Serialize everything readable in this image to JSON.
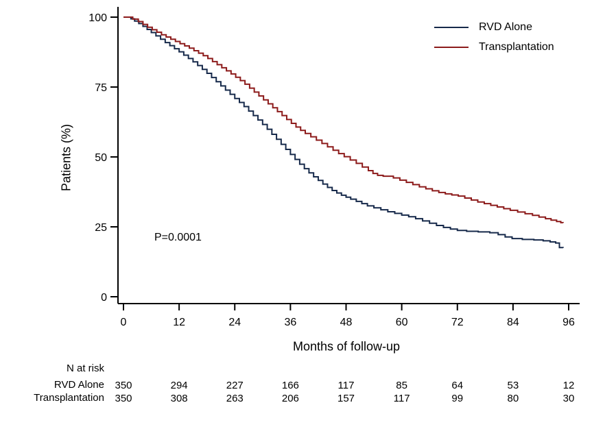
{
  "chart_data": {
    "type": "line",
    "subtype": "kaplan-meier-step",
    "xlabel": "Months of follow-up",
    "ylabel": "Patients (%)",
    "xlim": [
      0,
      96
    ],
    "ylim": [
      0,
      100
    ],
    "xticks": [
      0,
      12,
      24,
      36,
      48,
      60,
      72,
      84,
      96
    ],
    "yticks": [
      0,
      25,
      50,
      75,
      100
    ],
    "grid": false,
    "legend_position": "top-right",
    "annotation": "P=0.0001",
    "axis_color": "#000000",
    "series": [
      {
        "name": "RVD Alone",
        "color": "#16294a",
        "points": [
          [
            0,
            100
          ],
          [
            1.6,
            99.4
          ],
          [
            2.4,
            98.6
          ],
          [
            3.3,
            97.7
          ],
          [
            4.2,
            96.7
          ],
          [
            5.1,
            95.6
          ],
          [
            6,
            94.5
          ],
          [
            7,
            93.3
          ],
          [
            8,
            92.1
          ],
          [
            9,
            90.9
          ],
          [
            10,
            89.8
          ],
          [
            11,
            88.7
          ],
          [
            12,
            87.6
          ],
          [
            13,
            86.4
          ],
          [
            14,
            85.2
          ],
          [
            15,
            84
          ],
          [
            16,
            82.7
          ],
          [
            17,
            81.3
          ],
          [
            18,
            79.9
          ],
          [
            19,
            78.4
          ],
          [
            20,
            76.9
          ],
          [
            21,
            75.4
          ],
          [
            22,
            73.9
          ],
          [
            23,
            72.4
          ],
          [
            24,
            70.9
          ],
          [
            25,
            69.5
          ],
          [
            26,
            68
          ],
          [
            27,
            66.4
          ],
          [
            28,
            64.8
          ],
          [
            29,
            63.2
          ],
          [
            30,
            61.6
          ],
          [
            31,
            59.9
          ],
          [
            32,
            58.1
          ],
          [
            33,
            56.3
          ],
          [
            34,
            54.5
          ],
          [
            35,
            52.7
          ],
          [
            36,
            50.9
          ],
          [
            37,
            49.1
          ],
          [
            38,
            47.4
          ],
          [
            39,
            45.8
          ],
          [
            40,
            44.3
          ],
          [
            41,
            42.9
          ],
          [
            42,
            41.6
          ],
          [
            43,
            40.3
          ],
          [
            44,
            39.1
          ],
          [
            45,
            38
          ],
          [
            46,
            37.1
          ],
          [
            47,
            36.3
          ],
          [
            48,
            35.6
          ],
          [
            49,
            34.9
          ],
          [
            50.2,
            34.1
          ],
          [
            51.4,
            33.3
          ],
          [
            52.6,
            32.5
          ],
          [
            54,
            31.8
          ],
          [
            55.5,
            31.1
          ],
          [
            57,
            30.4
          ],
          [
            58.5,
            29.8
          ],
          [
            60,
            29.2
          ],
          [
            61.5,
            28.6
          ],
          [
            63,
            27.9
          ],
          [
            64.5,
            27.1
          ],
          [
            66,
            26.3
          ],
          [
            67.5,
            25.5
          ],
          [
            69,
            24.8
          ],
          [
            70.5,
            24.2
          ],
          [
            72,
            23.7
          ],
          [
            74,
            23.4
          ],
          [
            76.5,
            23.2
          ],
          [
            79,
            22.9
          ],
          [
            80.8,
            22.2
          ],
          [
            82.3,
            21.4
          ],
          [
            83.8,
            20.8
          ],
          [
            86,
            20.5
          ],
          [
            88.5,
            20.3
          ],
          [
            90.5,
            20
          ],
          [
            92,
            19.6
          ],
          [
            93.2,
            19.2
          ],
          [
            94,
            17.6
          ],
          [
            94.8,
            17.5
          ]
        ]
      },
      {
        "name": "Transplantation",
        "color": "#8c1a1a",
        "points": [
          [
            0,
            100
          ],
          [
            2,
            99.3
          ],
          [
            3.2,
            98.4
          ],
          [
            4.2,
            97.4
          ],
          [
            5.2,
            96.4
          ],
          [
            6.2,
            95.5
          ],
          [
            7.2,
            94.6
          ],
          [
            8.2,
            93.7
          ],
          [
            9.2,
            92.9
          ],
          [
            10.2,
            92.1
          ],
          [
            11.2,
            91.3
          ],
          [
            12.2,
            90.5
          ],
          [
            13.2,
            89.7
          ],
          [
            14.2,
            88.9
          ],
          [
            15.2,
            88
          ],
          [
            16.2,
            87.1
          ],
          [
            17.2,
            86.2
          ],
          [
            18.2,
            85.2
          ],
          [
            19.2,
            84.1
          ],
          [
            20.2,
            83
          ],
          [
            21.2,
            81.9
          ],
          [
            22.2,
            80.8
          ],
          [
            23.2,
            79.7
          ],
          [
            24.2,
            78.5
          ],
          [
            25.2,
            77.3
          ],
          [
            26.2,
            76
          ],
          [
            27.2,
            74.6
          ],
          [
            28.2,
            73.2
          ],
          [
            29.2,
            71.8
          ],
          [
            30.2,
            70.4
          ],
          [
            31.2,
            69
          ],
          [
            32.2,
            67.6
          ],
          [
            33.2,
            66.2
          ],
          [
            34.2,
            64.8
          ],
          [
            35.2,
            63.4
          ],
          [
            36.2,
            62
          ],
          [
            37.2,
            60.7
          ],
          [
            38.2,
            59.5
          ],
          [
            39.2,
            58.4
          ],
          [
            40.4,
            57.2
          ],
          [
            41.6,
            56
          ],
          [
            42.8,
            54.8
          ],
          [
            44,
            53.6
          ],
          [
            45.2,
            52.4
          ],
          [
            46.4,
            51.2
          ],
          [
            47.6,
            50.1
          ],
          [
            48.9,
            48.9
          ],
          [
            50.2,
            47.7
          ],
          [
            51.5,
            46.4
          ],
          [
            52.8,
            45.1
          ],
          [
            53.8,
            44.1
          ],
          [
            54.8,
            43.4
          ],
          [
            56,
            43.1
          ],
          [
            58.2,
            42.5
          ],
          [
            59.6,
            41.7
          ],
          [
            61,
            40.9
          ],
          [
            62.4,
            40.1
          ],
          [
            63.8,
            39.3
          ],
          [
            65.2,
            38.6
          ],
          [
            66.6,
            37.9
          ],
          [
            68,
            37.3
          ],
          [
            69.4,
            36.8
          ],
          [
            70.8,
            36.4
          ],
          [
            72.2,
            36
          ],
          [
            73.6,
            35.3
          ],
          [
            75,
            34.6
          ],
          [
            76.4,
            33.9
          ],
          [
            77.8,
            33.3
          ],
          [
            79.2,
            32.7
          ],
          [
            80.6,
            32.1
          ],
          [
            82,
            31.5
          ],
          [
            83.4,
            30.9
          ],
          [
            85,
            30.3
          ],
          [
            86.6,
            29.7
          ],
          [
            88.2,
            29.1
          ],
          [
            89.6,
            28.5
          ],
          [
            91,
            27.9
          ],
          [
            92.2,
            27.4
          ],
          [
            93.4,
            26.9
          ],
          [
            94.3,
            26.5
          ],
          [
            94.8,
            26.4
          ]
        ]
      }
    ],
    "risk_table": {
      "title": "N at risk",
      "months": [
        0,
        12,
        24,
        36,
        48,
        60,
        72,
        84,
        96
      ],
      "rows": [
        {
          "label": "RVD Alone",
          "values": [
            350,
            294,
            227,
            166,
            117,
            85,
            64,
            53,
            12
          ]
        },
        {
          "label": "Transplantation",
          "values": [
            350,
            308,
            263,
            206,
            157,
            117,
            99,
            80,
            30
          ]
        }
      ]
    }
  }
}
